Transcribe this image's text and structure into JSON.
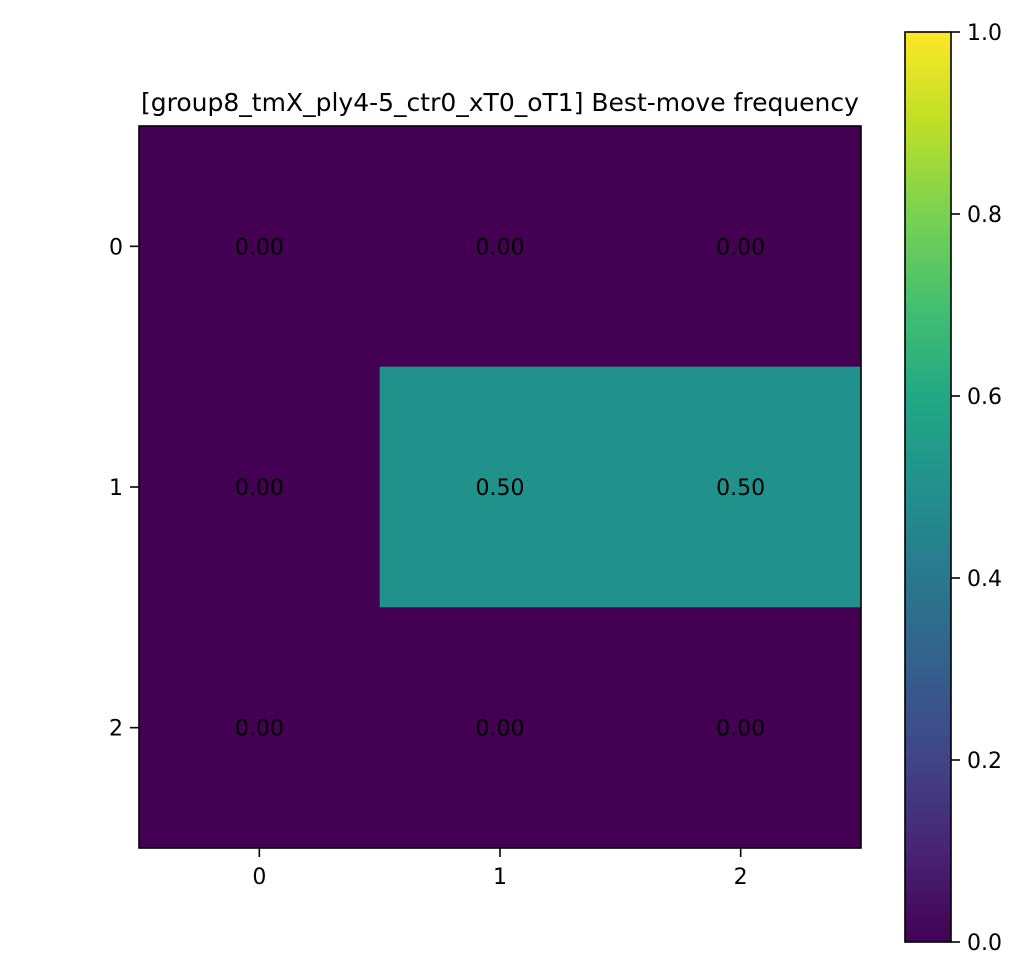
{
  "chart_data": {
    "type": "heatmap",
    "title": "[group8_tmX_ply4-5_ctr0_xT0_oT1] Best-move frequency",
    "xlabel": "",
    "ylabel": "",
    "x_ticks": [
      "0",
      "1",
      "2"
    ],
    "y_ticks": [
      "0",
      "1",
      "2"
    ],
    "values": [
      [
        0.0,
        0.0,
        0.0
      ],
      [
        0.0,
        0.5,
        0.5
      ],
      [
        0.0,
        0.0,
        0.0
      ]
    ],
    "cell_labels": [
      [
        "0.00",
        "0.00",
        "0.00"
      ],
      [
        "0.00",
        "0.50",
        "0.50"
      ],
      [
        "0.00",
        "0.00",
        "0.00"
      ]
    ],
    "colormap": "viridis",
    "clim": [
      0.0,
      1.0
    ],
    "colorbar": {
      "ticks": [
        0.0,
        0.2,
        0.4,
        0.6,
        0.8,
        1.0
      ],
      "tick_labels": [
        "0.0",
        "0.2",
        "0.4",
        "0.6",
        "0.8",
        "1.0"
      ],
      "placement": "right"
    },
    "colors": {
      "low": "#440154",
      "mid": "#21918c",
      "high": "#fde725"
    }
  }
}
